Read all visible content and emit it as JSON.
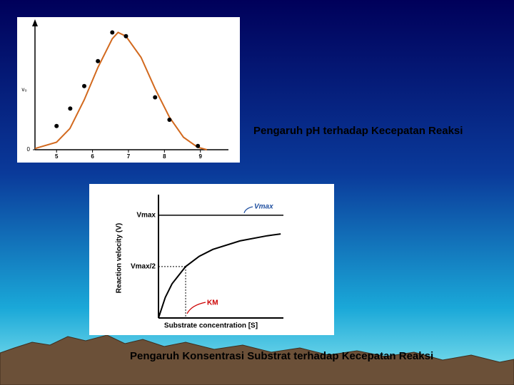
{
  "captions": [
    "Pengaruh pH terhadap Kecepatan Reaksi",
    "Pengaruh Konsentrasi Substrat terhadap Kecepatan Reaksi"
  ],
  "chart_data": [
    {
      "type": "scatter",
      "ylabel": "v₀",
      "x": [
        5,
        5.38,
        5.77,
        6.15,
        6.55,
        6.93,
        7.74,
        8.14,
        8.93
      ],
      "values": [
        19,
        33,
        51,
        71,
        94,
        91,
        42,
        24,
        3
      ],
      "color": "#000000",
      "fit_line": {
        "color": "#d2691e",
        "x": [
          4.4,
          5.0,
          5.37,
          5.77,
          6.15,
          6.55,
          6.71,
          6.93,
          7.35,
          7.74,
          8.14,
          8.53,
          8.92,
          9.18
        ],
        "values": [
          1,
          6,
          17,
          40,
          66,
          89,
          94,
          91,
          74,
          49,
          26,
          10,
          2,
          0
        ]
      },
      "xlim": [
        4.4,
        9.78
      ],
      "ylim": [
        0,
        100
      ],
      "xticks": [
        5,
        6,
        7,
        8,
        9
      ],
      "yticks": [
        0
      ]
    },
    {
      "type": "line",
      "xlabel": "Substrate concentration [S]",
      "ylabel": "Reaction velocity (V)",
      "x": [
        0,
        0.25,
        0.5,
        1,
        1.5,
        2,
        3,
        4,
        4.5
      ],
      "values": [
        0,
        0.2,
        0.333,
        0.5,
        0.6,
        0.667,
        0.75,
        0.8,
        0.818
      ],
      "color": "#000000",
      "xlim": [
        0,
        4.6
      ],
      "ylim": [
        0,
        1.2
      ],
      "vmax": {
        "label": "Vmax",
        "value": 1,
        "pointer_label": "Vmax",
        "pointer_color": "#1f4fa0"
      },
      "half_vmax": {
        "label": "Vmax/2",
        "value": 0.5
      },
      "km": {
        "label": "KM",
        "value": 1,
        "color": "#cc0000"
      }
    }
  ]
}
